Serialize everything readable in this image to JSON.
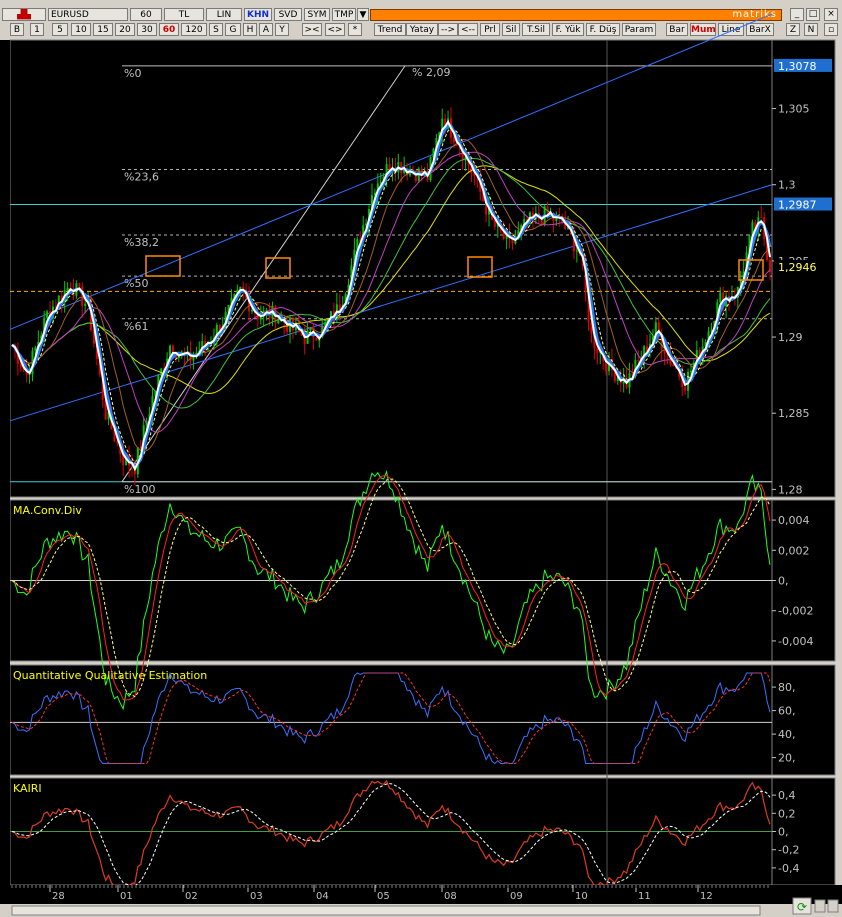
{
  "toolbar_top": {
    "symbol": "EURUSD",
    "period": "60",
    "buttons": [
      "TL",
      "LIN",
      "KHN",
      "SVD",
      "SYM",
      "TMP"
    ],
    "active_button": "KHN",
    "brand": "matriks"
  },
  "toolbar_periods": {
    "items": [
      "B",
      "1",
      "5",
      "10",
      "15",
      "20",
      "30",
      "60",
      "120",
      "S",
      "G",
      "H",
      "A",
      "Y"
    ],
    "active": "60"
  },
  "toolbar_tools": {
    "items": [
      ">< ",
      "<>",
      "*",
      "Trend",
      "Yatay",
      "-->",
      "<--",
      "Prl",
      "Sil",
      "T.Sil",
      "F. Yük",
      "F. Düş",
      "Param",
      "Bar",
      "Mum",
      "Line",
      "BarX",
      "Z",
      "N"
    ],
    "active": "Mum"
  },
  "price_panel": {
    "axis_ticks": [
      "1,305",
      "1,3",
      "1,295",
      "1,29",
      "1,285",
      "1,28"
    ],
    "price_tags": {
      "high": "1,3078",
      "line": "1,2987",
      "last": "1,2946"
    },
    "fib_labels": [
      "%0",
      "%23,6",
      "%38,2",
      "%50",
      "%61",
      "%100"
    ],
    "annotation": "% 2,09"
  },
  "indicators": [
    {
      "name": "MA.Conv.Div",
      "ticks": [
        "0,004",
        "0,002",
        "0,",
        "-0,002",
        "-0,004"
      ]
    },
    {
      "name": "Quantitative Qualitative Estimation",
      "ticks": [
        "80,",
        "60,",
        "40,",
        "20,"
      ]
    },
    {
      "name": "KAIRI",
      "ticks": [
        "0,4",
        "0,2",
        "0,",
        "-0,2",
        "-0,4"
      ]
    }
  ],
  "time_axis": [
    "28",
    "01",
    "02",
    "03",
    "04",
    "05",
    "08",
    "09",
    "10",
    "11",
    "12"
  ],
  "colors": {
    "chart_bg": "#000000",
    "up_candle": "#00c800",
    "down_candle": "#e00000",
    "fib_line": "#c0c0c0",
    "trend_line": "#3070ff",
    "horizontal_line": "#40d0d0",
    "highlight_box": "#ff8c00",
    "brand_bar": "#ff8000"
  }
}
